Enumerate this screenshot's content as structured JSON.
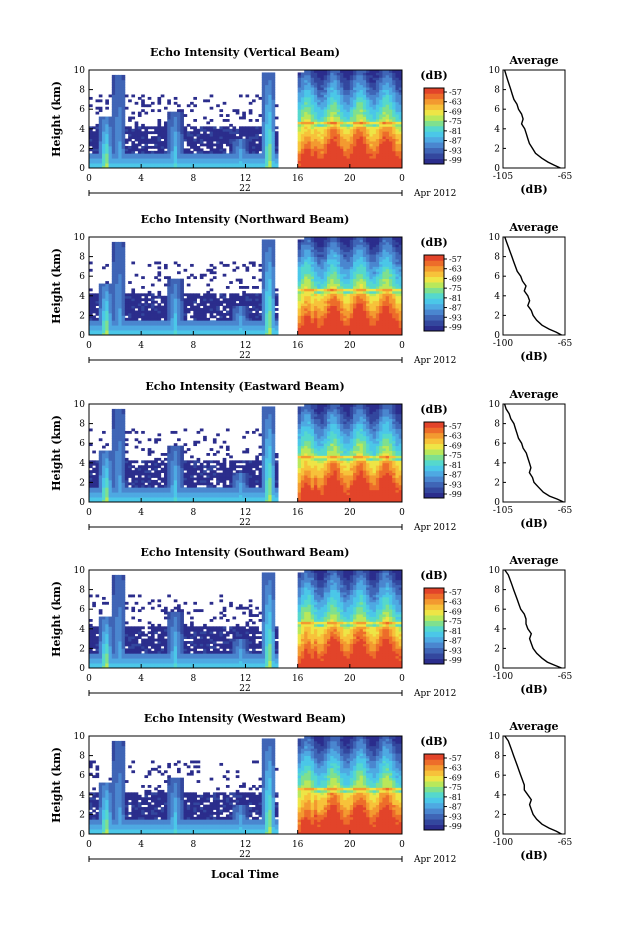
{
  "colors": {
    "scale": [
      "#2b2d8c",
      "#33479e",
      "#3f65b6",
      "#4a86cf",
      "#4ea9e2",
      "#4bc7e8",
      "#55d8cd",
      "#7fe08e",
      "#b9e85a",
      "#eee546",
      "#f7c23a",
      "#f39a30",
      "#ed6d2a",
      "#e2442a"
    ]
  },
  "footer": {
    "xlabel": "Local Time"
  },
  "chart_data": [
    {
      "type": "heatmap",
      "title": "Echo Intensity (Vertical Beam)",
      "ylabel": "Height (km)",
      "x_ticks": [
        "0",
        "4",
        "8",
        "12",
        "16",
        "20",
        "0"
      ],
      "y_ticks": [
        "0",
        "2",
        "4",
        "6",
        "8",
        "10"
      ],
      "xlim": [
        0,
        24
      ],
      "ylim": [
        0,
        10
      ],
      "date_label": "22",
      "month_label": "Apr 2012",
      "colorbar": {
        "unit": "(dB)",
        "ticks": [
          "-57",
          "-63",
          "-69",
          "-75",
          "-81",
          "-87",
          "-93",
          "-99"
        ]
      },
      "average": {
        "title": "Average",
        "xlabel": "(dB)",
        "x_ticks": [
          "-105",
          "-65"
        ],
        "xlim": [
          -105,
          -65
        ],
        "y_ticks": [
          "0",
          "2",
          "4",
          "6",
          "8",
          "10"
        ],
        "profile": {
          "height": [
            0.0,
            0.3,
            0.6,
            1.0,
            1.5,
            2.0,
            2.5,
            3.0,
            3.5,
            4.0,
            4.5,
            5.0,
            5.5,
            6.0,
            6.5,
            7.0,
            7.5,
            8.0,
            8.5,
            9.0,
            9.5,
            10.0
          ],
          "db": [
            -68,
            -72,
            -76,
            -80,
            -84,
            -86,
            -88,
            -89,
            -90,
            -91,
            -93,
            -92,
            -93,
            -95,
            -96,
            -98,
            -99,
            -100,
            -101,
            -102,
            -103,
            -104
          ]
        }
      }
    },
    {
      "type": "heatmap",
      "title": "Echo Intensity (Northward Beam)",
      "ylabel": "Height (km)",
      "x_ticks": [
        "0",
        "4",
        "8",
        "12",
        "16",
        "20",
        "0"
      ],
      "y_ticks": [
        "0",
        "2",
        "4",
        "6",
        "8",
        "10"
      ],
      "xlim": [
        0,
        24
      ],
      "ylim": [
        0,
        10
      ],
      "date_label": "22",
      "month_label": "Apr 2012",
      "colorbar": {
        "unit": "(dB)",
        "ticks": [
          "-57",
          "-63",
          "-69",
          "-75",
          "-81",
          "-87",
          "-93",
          "-99"
        ]
      },
      "average": {
        "title": "Average",
        "xlabel": "(dB)",
        "x_ticks": [
          "-100",
          "-65"
        ],
        "xlim": [
          -100,
          -65
        ],
        "y_ticks": [
          "0",
          "2",
          "4",
          "6",
          "8",
          "10"
        ],
        "profile": {
          "height": [
            0.0,
            0.3,
            0.6,
            1.0,
            1.5,
            2.0,
            2.5,
            3.0,
            3.5,
            4.0,
            4.5,
            5.0,
            5.5,
            6.0,
            6.5,
            7.0,
            7.5,
            8.0,
            8.5,
            9.0,
            9.5,
            10.0
          ],
          "db": [
            -67,
            -70,
            -74,
            -78,
            -81,
            -83,
            -84,
            -86,
            -85,
            -86,
            -88,
            -87,
            -89,
            -90,
            -92,
            -93,
            -94,
            -95,
            -96,
            -97,
            -98,
            -99
          ]
        }
      }
    },
    {
      "type": "heatmap",
      "title": "Echo Intensity (Eastward Beam)",
      "ylabel": "Height (km)",
      "x_ticks": [
        "0",
        "4",
        "8",
        "12",
        "16",
        "20",
        "0"
      ],
      "y_ticks": [
        "0",
        "2",
        "4",
        "6",
        "8",
        "10"
      ],
      "xlim": [
        0,
        24
      ],
      "ylim": [
        0,
        10
      ],
      "date_label": "22",
      "month_label": "Apr 2012",
      "colorbar": {
        "unit": "(dB)",
        "ticks": [
          "-57",
          "-63",
          "-69",
          "-75",
          "-81",
          "-87",
          "-93",
          "-99"
        ]
      },
      "average": {
        "title": "Average",
        "xlabel": "(dB)",
        "x_ticks": [
          "-105",
          "-65"
        ],
        "xlim": [
          -105,
          -65
        ],
        "y_ticks": [
          "0",
          "2",
          "4",
          "6",
          "8",
          "10"
        ],
        "profile": {
          "height": [
            0.0,
            0.3,
            0.6,
            1.0,
            1.5,
            2.0,
            2.5,
            3.0,
            3.5,
            4.0,
            4.5,
            5.0,
            5.5,
            6.0,
            6.5,
            7.0,
            7.5,
            8.0,
            8.5,
            9.0,
            9.5,
            10.0
          ],
          "db": [
            -66,
            -70,
            -75,
            -79,
            -82,
            -85,
            -86,
            -88,
            -87,
            -88,
            -89,
            -90,
            -92,
            -93,
            -95,
            -96,
            -97,
            -98,
            -100,
            -101,
            -103,
            -104
          ]
        }
      }
    },
    {
      "type": "heatmap",
      "title": "Echo Intensity (Southward Beam)",
      "ylabel": "Height (km)",
      "x_ticks": [
        "0",
        "4",
        "8",
        "12",
        "16",
        "20",
        "0"
      ],
      "y_ticks": [
        "0",
        "2",
        "4",
        "6",
        "8",
        "10"
      ],
      "xlim": [
        0,
        24
      ],
      "ylim": [
        0,
        10
      ],
      "date_label": "22",
      "month_label": "Apr 2012",
      "colorbar": {
        "unit": "(dB)",
        "ticks": [
          "-57",
          "-63",
          "-69",
          "-75",
          "-81",
          "-87",
          "-93",
          "-99"
        ]
      },
      "average": {
        "title": "Average",
        "xlabel": "(dB)",
        "x_ticks": [
          "-100",
          "-65"
        ],
        "xlim": [
          -100,
          -65
        ],
        "y_ticks": [
          "0",
          "2",
          "4",
          "6",
          "8",
          "10"
        ],
        "profile": {
          "height": [
            0.0,
            0.3,
            0.6,
            1.0,
            1.5,
            2.0,
            2.5,
            3.0,
            3.5,
            4.0,
            4.5,
            5.0,
            5.5,
            6.0,
            6.5,
            7.0,
            7.5,
            8.0,
            8.5,
            9.0,
            9.5,
            10.0
          ],
          "db": [
            -67,
            -71,
            -75,
            -78,
            -81,
            -83,
            -84,
            -85,
            -84,
            -86,
            -87,
            -87,
            -88,
            -90,
            -91,
            -92,
            -93,
            -94,
            -95,
            -96,
            -97,
            -99
          ]
        }
      }
    },
    {
      "type": "heatmap",
      "title": "Echo Intensity (Westward Beam)",
      "ylabel": "Height (km)",
      "x_ticks": [
        "0",
        "4",
        "8",
        "12",
        "16",
        "20",
        "0"
      ],
      "y_ticks": [
        "0",
        "2",
        "4",
        "6",
        "8",
        "10"
      ],
      "xlim": [
        0,
        24
      ],
      "ylim": [
        0,
        10
      ],
      "date_label": "22",
      "month_label": "Apr 2012",
      "colorbar": {
        "unit": "(dB)",
        "ticks": [
          "-57",
          "-63",
          "-69",
          "-75",
          "-81",
          "-87",
          "-93",
          "-99"
        ]
      },
      "average": {
        "title": "Average",
        "xlabel": "(dB)",
        "x_ticks": [
          "-100",
          "-65"
        ],
        "xlim": [
          -100,
          -65
        ],
        "y_ticks": [
          "0",
          "2",
          "4",
          "6",
          "8",
          "10"
        ],
        "profile": {
          "height": [
            0.0,
            0.3,
            0.6,
            1.0,
            1.5,
            2.0,
            2.5,
            3.0,
            3.5,
            4.0,
            4.5,
            5.0,
            5.5,
            6.0,
            6.5,
            7.0,
            7.5,
            8.0,
            8.5,
            9.0,
            9.5,
            10.0
          ],
          "db": [
            -67,
            -70,
            -74,
            -78,
            -81,
            -83,
            -84,
            -85,
            -84,
            -86,
            -88,
            -88,
            -89,
            -90,
            -91,
            -92,
            -93,
            -94,
            -95,
            -96,
            -97,
            -99
          ]
        }
      }
    }
  ]
}
